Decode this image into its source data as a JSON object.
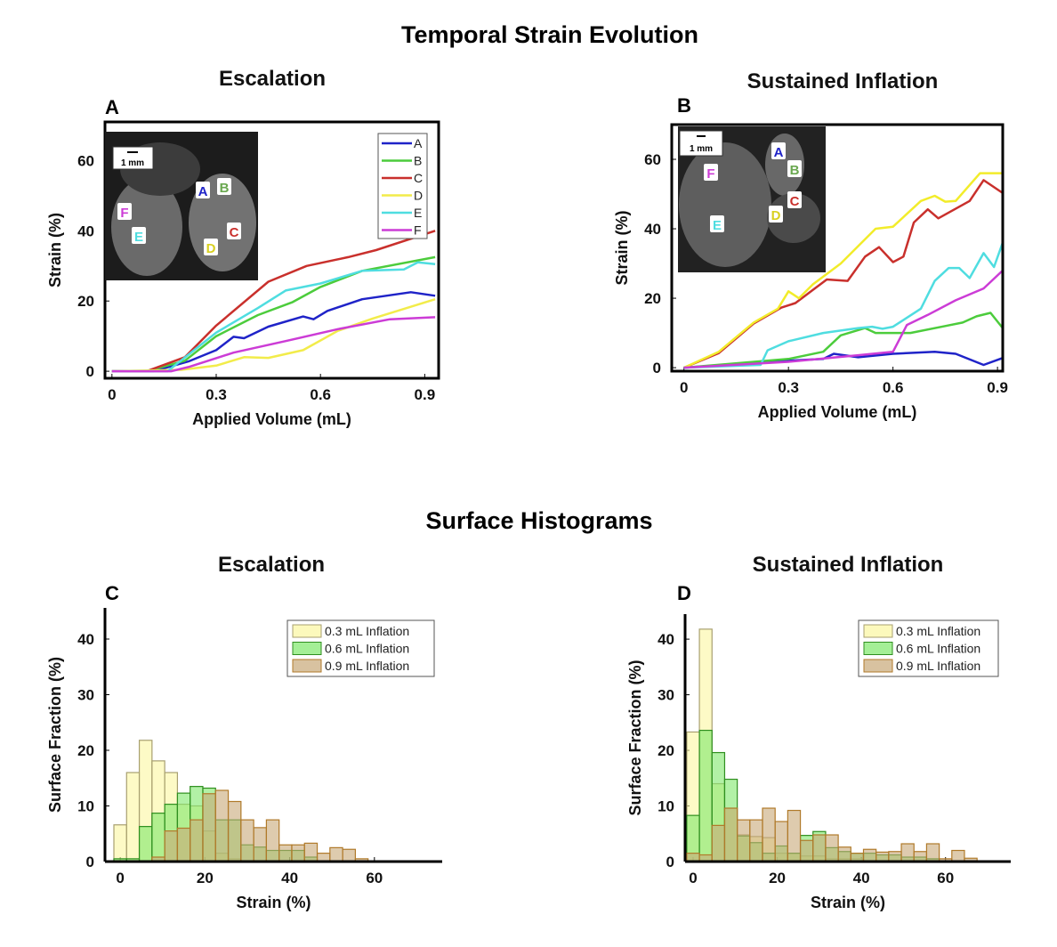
{
  "header": {
    "title": "Temporal Strain Evolution",
    "hist_title": "Surface Histograms"
  },
  "inset_a": {
    "scale": "1 mm",
    "letters": [
      "A",
      "B",
      "C",
      "D",
      "E",
      "F"
    ]
  },
  "inset_b": {
    "scale": "1 mm",
    "letters": [
      "A",
      "B",
      "C",
      "D",
      "E",
      "F"
    ]
  },
  "chart_data": [
    {
      "panel": "A",
      "type": "line",
      "title": "Escalation",
      "xlabel": "Applied Volume (mL)",
      "ylabel": "Strain (%)",
      "xlim": [
        -0.02,
        0.94
      ],
      "ylim": [
        -2,
        71
      ],
      "xticks": [
        0,
        0.3,
        0.6,
        0.9
      ],
      "xtick_labels": [
        "0",
        "0.3",
        "0.6",
        "0.9"
      ],
      "yticks": [
        0,
        20,
        40,
        60
      ],
      "ytick_labels": [
        "0",
        "20",
        "40",
        "60"
      ],
      "legend": "top-right",
      "series": [
        {
          "name": "A",
          "color": "#1f23c8",
          "points": [
            [
              0,
              0
            ],
            [
              0.12,
              0
            ],
            [
              0.22,
              2.8
            ],
            [
              0.3,
              6
            ],
            [
              0.35,
              9.8
            ],
            [
              0.38,
              9.4
            ],
            [
              0.45,
              12.7
            ],
            [
              0.55,
              15.6
            ],
            [
              0.58,
              14.8
            ],
            [
              0.62,
              17.2
            ],
            [
              0.72,
              20.5
            ],
            [
              0.86,
              22.5
            ],
            [
              0.93,
              21.5
            ]
          ]
        },
        {
          "name": "B",
          "color": "#4ccc3c",
          "points": [
            [
              0,
              0
            ],
            [
              0.1,
              0
            ],
            [
              0.21,
              3
            ],
            [
              0.3,
              10
            ],
            [
              0.42,
              16
            ],
            [
              0.52,
              19.7
            ],
            [
              0.6,
              24
            ],
            [
              0.72,
              28.6
            ],
            [
              0.93,
              32.5
            ]
          ]
        },
        {
          "name": "C",
          "color": "#c9302c",
          "points": [
            [
              0,
              0
            ],
            [
              0.1,
              0
            ],
            [
              0.21,
              4
            ],
            [
              0.3,
              13
            ],
            [
              0.45,
              25.5
            ],
            [
              0.56,
              30
            ],
            [
              0.68,
              32.5
            ],
            [
              0.76,
              34.5
            ],
            [
              0.93,
              40
            ]
          ]
        },
        {
          "name": "D",
          "color": "#f2ec4a",
          "points": [
            [
              0,
              0
            ],
            [
              0.2,
              0.4
            ],
            [
              0.3,
              1.6
            ],
            [
              0.38,
              4
            ],
            [
              0.45,
              3.8
            ],
            [
              0.55,
              6
            ],
            [
              0.65,
              11.5
            ],
            [
              0.75,
              15
            ],
            [
              0.93,
              20.5
            ]
          ]
        },
        {
          "name": "E",
          "color": "#4fdde0",
          "points": [
            [
              0,
              0
            ],
            [
              0.16,
              0
            ],
            [
              0.3,
              11
            ],
            [
              0.42,
              18
            ],
            [
              0.5,
              23
            ],
            [
              0.6,
              25
            ],
            [
              0.72,
              28.6
            ],
            [
              0.84,
              29
            ],
            [
              0.88,
              31
            ],
            [
              0.93,
              30.5
            ]
          ]
        },
        {
          "name": "F",
          "color": "#cc3cd6",
          "points": [
            [
              0,
              0
            ],
            [
              0.17,
              0
            ],
            [
              0.22,
              1.2
            ],
            [
              0.35,
              5.3
            ],
            [
              0.5,
              8.6
            ],
            [
              0.65,
              12
            ],
            [
              0.8,
              14.8
            ],
            [
              0.93,
              15.4
            ]
          ]
        }
      ]
    },
    {
      "panel": "B",
      "type": "line",
      "title": "Sustained Inflation",
      "xlabel": "Applied Volume (mL)",
      "ylabel": "Strain (%)",
      "xlim": [
        -0.035,
        0.915
      ],
      "ylim": [
        -1,
        70
      ],
      "xticks": [
        0,
        0.3,
        0.6,
        0.9
      ],
      "xtick_labels": [
        "0",
        "0.3",
        "0.6",
        "0.9"
      ],
      "yticks": [
        0,
        20,
        40,
        60
      ],
      "ytick_labels": [
        "0",
        "20",
        "40",
        "60"
      ],
      "series": [
        {
          "name": "A",
          "color": "#1f23c8",
          "points": [
            [
              0,
              0
            ],
            [
              0.3,
              2
            ],
            [
              0.4,
              2.5
            ],
            [
              0.43,
              4
            ],
            [
              0.5,
              3
            ],
            [
              0.6,
              4
            ],
            [
              0.72,
              4.6
            ],
            [
              0.78,
              4
            ],
            [
              0.86,
              0.8
            ],
            [
              0.915,
              2.8
            ]
          ]
        },
        {
          "name": "B",
          "color": "#4ccc3c",
          "points": [
            [
              0,
              0
            ],
            [
              0.3,
              2.5
            ],
            [
              0.4,
              4.6
            ],
            [
              0.45,
              9.3
            ],
            [
              0.52,
              11.4
            ],
            [
              0.55,
              10
            ],
            [
              0.65,
              10
            ],
            [
              0.75,
              12
            ],
            [
              0.8,
              13
            ],
            [
              0.84,
              14.8
            ],
            [
              0.88,
              15.8
            ],
            [
              0.915,
              11.4
            ]
          ]
        },
        {
          "name": "C",
          "color": "#c9302c",
          "points": [
            [
              0,
              0
            ],
            [
              0.1,
              4.2
            ],
            [
              0.2,
              12.7
            ],
            [
              0.28,
              17.3
            ],
            [
              0.32,
              18.6
            ],
            [
              0.37,
              22.4
            ],
            [
              0.41,
              25.4
            ],
            [
              0.47,
              25
            ],
            [
              0.52,
              32
            ],
            [
              0.56,
              34.7
            ],
            [
              0.6,
              30.4
            ],
            [
              0.63,
              32
            ],
            [
              0.66,
              41.8
            ],
            [
              0.7,
              45.6
            ],
            [
              0.73,
              43
            ],
            [
              0.82,
              48
            ],
            [
              0.86,
              54
            ],
            [
              0.915,
              50.3
            ]
          ]
        },
        {
          "name": "D",
          "color": "#f2ec2a",
          "points": [
            [
              0,
              0
            ],
            [
              0.1,
              4.6
            ],
            [
              0.2,
              13
            ],
            [
              0.27,
              17
            ],
            [
              0.3,
              22
            ],
            [
              0.33,
              20
            ],
            [
              0.37,
              24
            ],
            [
              0.45,
              30
            ],
            [
              0.55,
              40
            ],
            [
              0.6,
              40.6
            ],
            [
              0.68,
              48
            ],
            [
              0.72,
              49.5
            ],
            [
              0.75,
              47.8
            ],
            [
              0.78,
              48
            ],
            [
              0.85,
              56
            ],
            [
              0.915,
              56
            ]
          ]
        },
        {
          "name": "E",
          "color": "#4fdde0",
          "points": [
            [
              0,
              0
            ],
            [
              0.22,
              0.8
            ],
            [
              0.24,
              5
            ],
            [
              0.3,
              7.6
            ],
            [
              0.4,
              10
            ],
            [
              0.5,
              11.4
            ],
            [
              0.54,
              11.8
            ],
            [
              0.57,
              11.2
            ],
            [
              0.6,
              11.8
            ],
            [
              0.68,
              17
            ],
            [
              0.72,
              25
            ],
            [
              0.76,
              28.7
            ],
            [
              0.79,
              28.7
            ],
            [
              0.82,
              25.8
            ],
            [
              0.86,
              33
            ],
            [
              0.89,
              29
            ],
            [
              0.915,
              36
            ]
          ]
        },
        {
          "name": "F",
          "color": "#cc3cd6",
          "points": [
            [
              0,
              0
            ],
            [
              0.3,
              1.7
            ],
            [
              0.5,
              3.6
            ],
            [
              0.6,
              4.6
            ],
            [
              0.64,
              12.3
            ],
            [
              0.7,
              15.2
            ],
            [
              0.78,
              19.4
            ],
            [
              0.86,
              22.8
            ],
            [
              0.915,
              28
            ]
          ]
        }
      ]
    },
    {
      "panel": "C",
      "type": "bar",
      "title": "Escalation",
      "xlabel": "Strain (%)",
      "ylabel": "Surface Fraction (%)",
      "xlim": [
        -3.6,
        76
      ],
      "ylim": [
        0,
        45.6
      ],
      "bin_width": 3,
      "bin_start": 0,
      "xticks": [
        0,
        20,
        40,
        60
      ],
      "xtick_labels": [
        "0",
        "20",
        "40",
        "60"
      ],
      "yticks": [
        0,
        10,
        20,
        30,
        40
      ],
      "ytick_labels": [
        "0",
        "10",
        "20",
        "30",
        "40"
      ],
      "legend": "top-right",
      "series": [
        {
          "name": "0.3 mL Inflation",
          "color": "#fbf7a0",
          "edge": "#a8a070",
          "values": [
            6.6,
            16,
            21.8,
            18.1,
            16,
            10.3,
            10,
            5.5,
            1.5,
            0.5,
            0,
            0,
            0,
            0,
            0,
            0,
            0,
            0,
            0,
            0
          ]
        },
        {
          "name": "0.6 mL Inflation",
          "color": "#7ee86a",
          "edge": "#2f8f1f",
          "values": [
            0.5,
            0.5,
            6.3,
            8.7,
            10.3,
            12.3,
            13.5,
            13.2,
            7.5,
            7.5,
            3,
            2.6,
            2,
            2,
            2,
            0.8,
            0,
            0,
            0,
            0
          ]
        },
        {
          "name": "0.9 mL Inflation",
          "color": "#c8a878",
          "edge": "#b07a2a",
          "values": [
            0,
            0,
            0,
            0.8,
            5.5,
            6,
            7.5,
            12.2,
            12.8,
            10.8,
            7.5,
            6.1,
            7.5,
            3,
            3,
            3.3,
            1.5,
            2.5,
            2.2,
            0.5
          ]
        }
      ]
    },
    {
      "panel": "D",
      "type": "bar",
      "title": "Sustained Inflation",
      "xlabel": "Strain (%)",
      "ylabel": "Surface Fraction (%)",
      "xlim": [
        -1.9,
        75.5
      ],
      "ylim": [
        0,
        44.5
      ],
      "bin_width": 3,
      "bin_start": 0,
      "xticks": [
        0,
        20,
        40,
        60
      ],
      "xtick_labels": [
        "0",
        "20",
        "40",
        "60"
      ],
      "yticks": [
        0,
        10,
        20,
        30,
        40
      ],
      "ytick_labels": [
        "0",
        "10",
        "20",
        "30",
        "40"
      ],
      "legend": "top-right",
      "series": [
        {
          "name": "0.3 mL Inflation",
          "color": "#fbf7a0",
          "edge": "#a8a070",
          "values": [
            23.3,
            41.8,
            14,
            9.6,
            4.8,
            4.5,
            4.3,
            1.5,
            1.5,
            1,
            1,
            0.5,
            0.5,
            0.5,
            0,
            0,
            0,
            0,
            0,
            0,
            0,
            0,
            0
          ]
        },
        {
          "name": "0.6 mL Inflation",
          "color": "#7ee86a",
          "edge": "#2f8f1f",
          "values": [
            8.3,
            23.6,
            19.6,
            14.8,
            4.6,
            3.4,
            1.5,
            2.8,
            1.5,
            4.7,
            5.4,
            2.5,
            1.8,
            1.5,
            1.5,
            1.2,
            1.2,
            0.8,
            0.8,
            0.5,
            0,
            0,
            0
          ]
        },
        {
          "name": "0.9 mL Inflation",
          "color": "#c8a878",
          "edge": "#b07a2a",
          "values": [
            1.5,
            1.2,
            6.5,
            9.6,
            7.5,
            7.5,
            9.6,
            7.2,
            9.2,
            3.8,
            4.8,
            4.8,
            2.6,
            1.5,
            2.2,
            1.7,
            1.8,
            3.2,
            1.8,
            3.2,
            0.5,
            2,
            0.6
          ]
        }
      ]
    }
  ]
}
